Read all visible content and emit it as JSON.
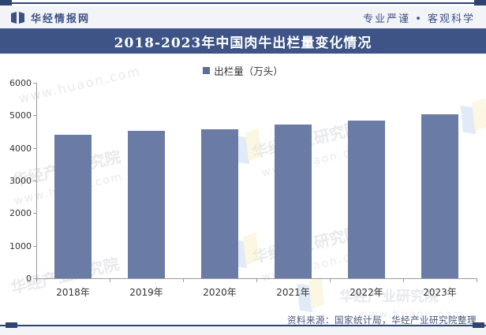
{
  "header": {
    "brand": "华经情报网",
    "slogan": "专业严谨 • 客观科学"
  },
  "title": "2018-2023年中国肉牛出栏量变化情况",
  "legend": {
    "label": "出栏量（万头）"
  },
  "chart_data": {
    "type": "bar",
    "title": "2018-2023年中国肉牛出栏量变化情况",
    "categories": [
      "2018年",
      "2019年",
      "2020年",
      "2021年",
      "2022年",
      "2023年"
    ],
    "series": [
      {
        "name": "出栏量（万头）",
        "values": [
          4398,
          4534,
          4565,
          4707,
          4840,
          5023
        ]
      }
    ],
    "xlabel": "",
    "ylabel": "",
    "ylim": [
      0,
      6000
    ],
    "ytick_step": 1000,
    "grid": false,
    "legend_position": "top",
    "bar_color": "#6a7ba5"
  },
  "footer": {
    "source": "资料来源：国家统计局，华经产业研究院整理"
  },
  "watermarks": {
    "name": "华经产业研究院",
    "site": "www.huaon.com"
  },
  "colors": {
    "accent_navy": "#2d4372",
    "title_bar_bg": "#3e5486",
    "bar_fill": "#6a7ba5",
    "header_text": "#3b5183"
  }
}
